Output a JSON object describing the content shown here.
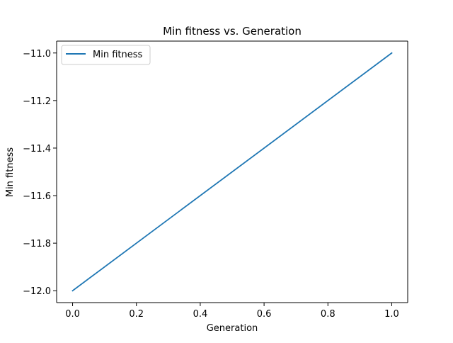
{
  "chart_data": {
    "type": "line",
    "title": "Min fitness vs. Generation",
    "xlabel": "Generation",
    "ylabel": "Min fitness",
    "xlim": [
      -0.05,
      1.05
    ],
    "ylim": [
      -12.05,
      -10.95
    ],
    "x_ticks": [
      0.0,
      0.2,
      0.4,
      0.6,
      0.8,
      1.0
    ],
    "x_tick_labels": [
      "0.0",
      "0.2",
      "0.4",
      "0.6",
      "0.8",
      "1.0"
    ],
    "y_ticks": [
      -12.0,
      -11.8,
      -11.6,
      -11.4,
      -11.2,
      -11.0
    ],
    "y_tick_labels": [
      "−12.0",
      "−11.8",
      "−11.6",
      "−11.4",
      "−11.2",
      "−11.0"
    ],
    "grid": false,
    "legend_position": "top-left",
    "series": [
      {
        "name": "Min fitness",
        "color": "#1f77b4",
        "x": [
          0,
          1
        ],
        "y": [
          -12.0,
          -11.0
        ]
      }
    ]
  }
}
